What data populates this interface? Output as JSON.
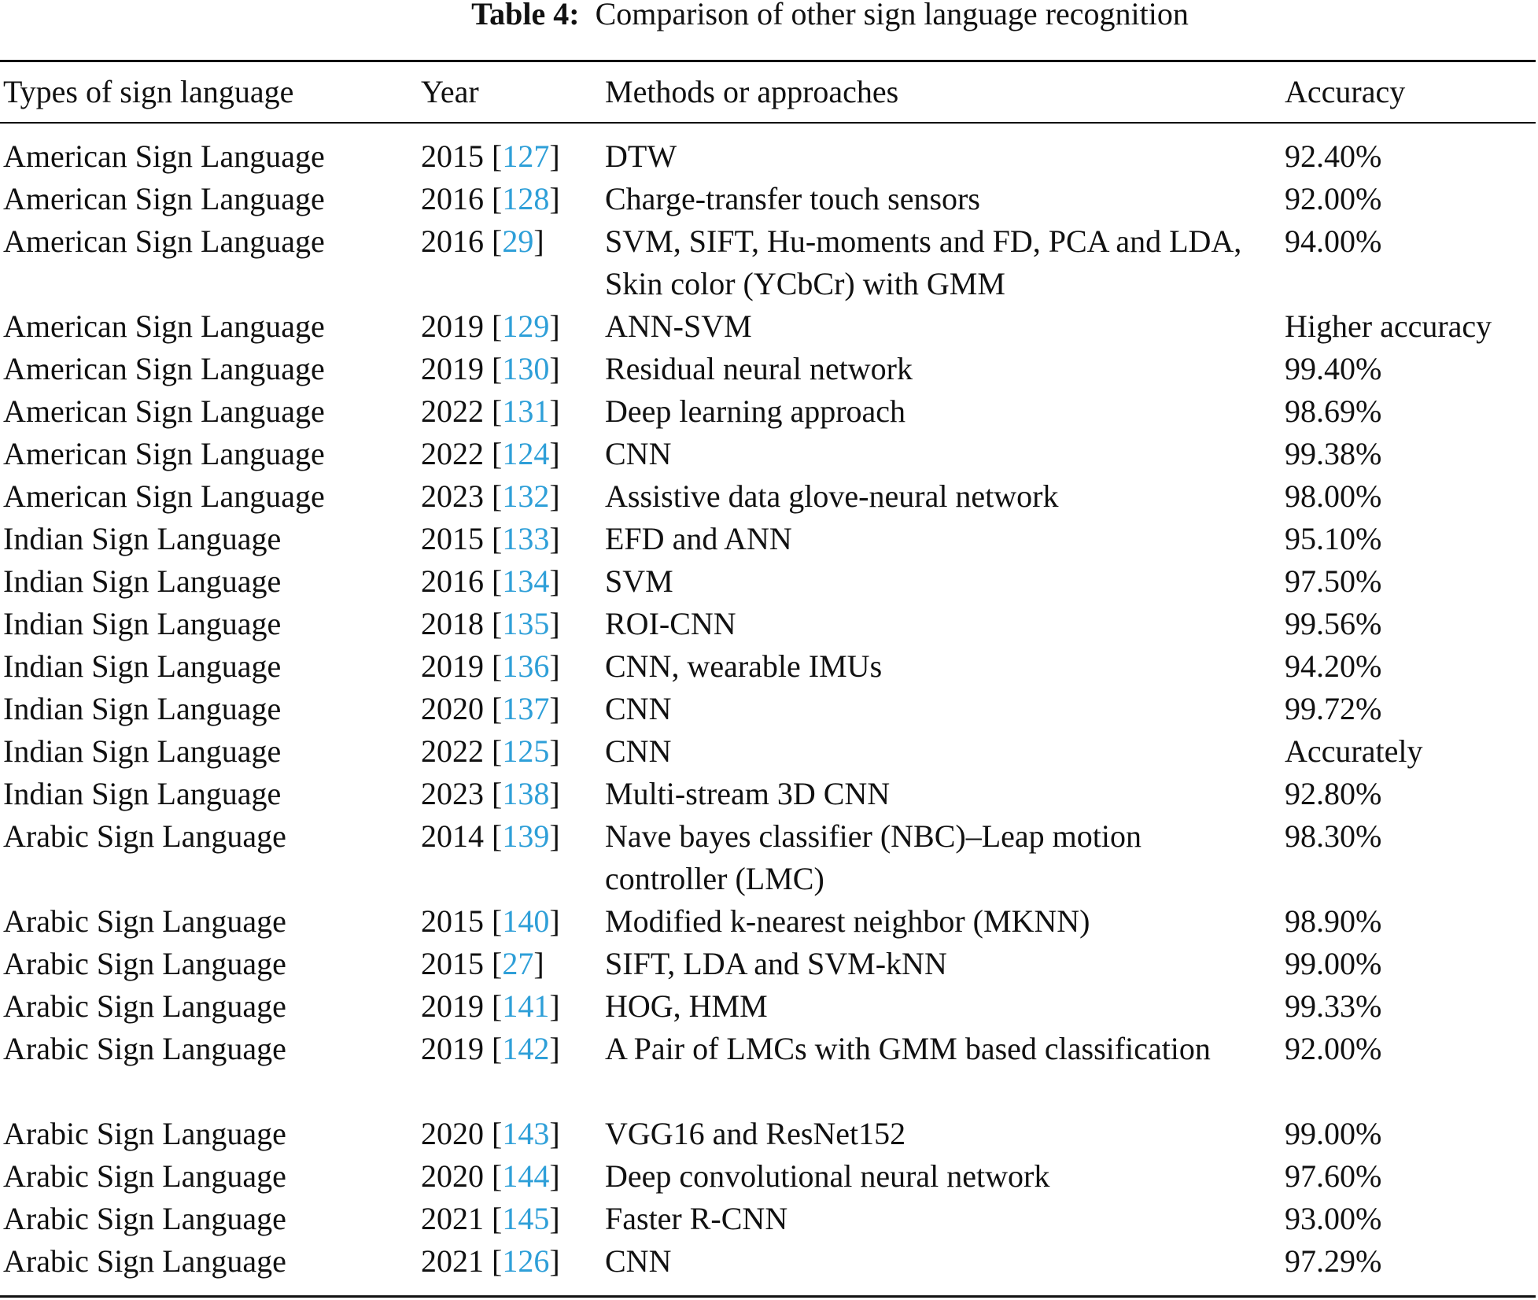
{
  "caption": {
    "label": "Table 4:",
    "text": "Comparison of other sign language recognition"
  },
  "headers": {
    "type": "Types of sign language",
    "year": "Year",
    "method": "Methods or approaches",
    "accuracy": "Accuracy"
  },
  "link_color": "#2e9fd8",
  "rows": [
    {
      "type": "American Sign Language",
      "year": "2015",
      "ref": "127",
      "method": "DTW",
      "accuracy": "92.40%",
      "lines": 1
    },
    {
      "type": "American Sign Language",
      "year": "2016",
      "ref": "128",
      "method": "Charge-transfer touch sensors",
      "accuracy": "92.00%",
      "lines": 1
    },
    {
      "type": "American Sign Language",
      "year": "2016",
      "ref": "29",
      "method": "SVM, SIFT, Hu-moments and FD, PCA and LDA, Skin color (YCbCr) with GMM",
      "accuracy": "94.00%",
      "lines": 2
    },
    {
      "type": "American Sign Language",
      "year": "2019",
      "ref": "129",
      "method": "ANN-SVM",
      "accuracy": "Higher accuracy",
      "lines": 1
    },
    {
      "type": "American Sign Language",
      "year": "2019",
      "ref": "130",
      "method": "Residual neural network",
      "accuracy": "99.40%",
      "lines": 1
    },
    {
      "type": "American Sign Language",
      "year": "2022",
      "ref": "131",
      "method": "Deep learning approach",
      "accuracy": "98.69%",
      "lines": 1
    },
    {
      "type": "American Sign Language",
      "year": "2022",
      "ref": "124",
      "method": "CNN",
      "accuracy": "99.38%",
      "lines": 1
    },
    {
      "type": "American Sign Language",
      "year": "2023",
      "ref": "132",
      "method": "Assistive data glove-neural network",
      "accuracy": "98.00%",
      "lines": 1
    },
    {
      "type": "Indian Sign Language",
      "year": "2015",
      "ref": "133",
      "method": "EFD and ANN",
      "accuracy": "95.10%",
      "lines": 1
    },
    {
      "type": "Indian Sign Language",
      "year": "2016",
      "ref": "134",
      "method": "SVM",
      "accuracy": "97.50%",
      "lines": 1
    },
    {
      "type": "Indian Sign Language",
      "year": "2018",
      "ref": "135",
      "method": "ROI-CNN",
      "accuracy": "99.56%",
      "lines": 1
    },
    {
      "type": "Indian Sign Language",
      "year": "2019",
      "ref": "136",
      "method": "CNN, wearable IMUs",
      "accuracy": "94.20%",
      "lines": 1
    },
    {
      "type": "Indian Sign Language",
      "year": "2020",
      "ref": "137",
      "method": "CNN",
      "accuracy": "99.72%",
      "lines": 1
    },
    {
      "type": "Indian Sign Language",
      "year": "2022",
      "ref": "125",
      "method": "CNN",
      "accuracy": "Accurately",
      "lines": 1
    },
    {
      "type": "Indian Sign Language",
      "year": "2023",
      "ref": "138",
      "method": "Multi-stream 3D CNN",
      "accuracy": "92.80%",
      "lines": 1
    },
    {
      "type": "Arabic Sign Language",
      "year": "2014",
      "ref": "139",
      "method": "Nave bayes classifier (NBC)–Leap motion controller (LMC)",
      "accuracy": "98.30%",
      "lines": 2
    },
    {
      "type": "Arabic Sign Language",
      "year": "2015",
      "ref": "140",
      "method": "Modified k-nearest neighbor (MKNN)",
      "accuracy": "98.90%",
      "lines": 1
    },
    {
      "type": "Arabic Sign Language",
      "year": "2015",
      "ref": "27",
      "method": "SIFT, LDA and SVM-kNN",
      "accuracy": "99.00%",
      "lines": 1
    },
    {
      "type": "Arabic Sign Language",
      "year": "2019",
      "ref": "141",
      "method": "HOG, HMM",
      "accuracy": "99.33%",
      "lines": 1
    },
    {
      "type": "Arabic Sign Language",
      "year": "2019",
      "ref": "142",
      "method": "A Pair of LMCs with GMM based classification",
      "accuracy": "92.00%",
      "lines": 2
    },
    {
      "type": "Arabic Sign Language",
      "year": "2020",
      "ref": "143",
      "method": "VGG16 and ResNet152",
      "accuracy": "99.00%",
      "lines": 1
    },
    {
      "type": "Arabic Sign Language",
      "year": "2020",
      "ref": "144",
      "method": "Deep convolutional neural network",
      "accuracy": "97.60%",
      "lines": 1
    },
    {
      "type": "Arabic Sign Language",
      "year": "2021",
      "ref": "145",
      "method": "Faster R-CNN",
      "accuracy": "93.00%",
      "lines": 1
    },
    {
      "type": "Arabic Sign Language",
      "year": "2021",
      "ref": "126",
      "method": "CNN",
      "accuracy": "97.29%",
      "lines": 1
    }
  ]
}
